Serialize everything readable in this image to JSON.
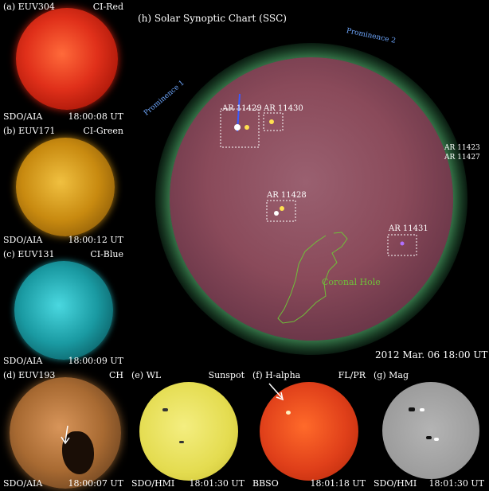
{
  "panels": {
    "a": {
      "label": "(a) EUV304",
      "tag": "CI-Red",
      "source": "SDO/AIA",
      "time": "18:00:08 UT"
    },
    "b": {
      "label": "(b) EUV171",
      "tag": "CI-Green",
      "source": "SDO/AIA",
      "time": "18:00:12 UT"
    },
    "c": {
      "label": "(c) EUV131",
      "tag": "CI-Blue",
      "source": "SDO/AIA",
      "time": "18:00:09 UT"
    },
    "d": {
      "label": "(d) EUV193",
      "tag": "CH",
      "source": "SDO/AIA",
      "time": "18:00:07 UT"
    },
    "e": {
      "label": "(e) WL",
      "tag": "Sunspot",
      "source": "SDO/HMI",
      "time": "18:01:30 UT"
    },
    "f": {
      "label": "(f) H-alpha",
      "tag": "FL/PR",
      "source": "BBSO",
      "time": "18:01:18 UT"
    },
    "g": {
      "label": "(g) Mag",
      "tag": "",
      "source": "SDO/HMI",
      "time": "18:01:30 UT"
    }
  },
  "ssc": {
    "title": "(h) Solar Synoptic Chart (SSC)",
    "date": "2012 Mar. 06  18:00 UT",
    "regions": [
      "AR 11429",
      "AR 11430",
      "AR 11428",
      "AR 11431",
      "AR 11423",
      "AR 11427"
    ],
    "prominences": [
      "Prominence 1",
      "Prominence 2"
    ],
    "coronal_hole": "Coronal Hole"
  },
  "colors": {
    "red": "#e0301a",
    "gold": "#d89a1a",
    "cyan": "#25b8c0",
    "bronze": "#b8763a",
    "yellow": "#e8e25a",
    "halpha": "#e0401a",
    "contour": "#6fc03a"
  }
}
